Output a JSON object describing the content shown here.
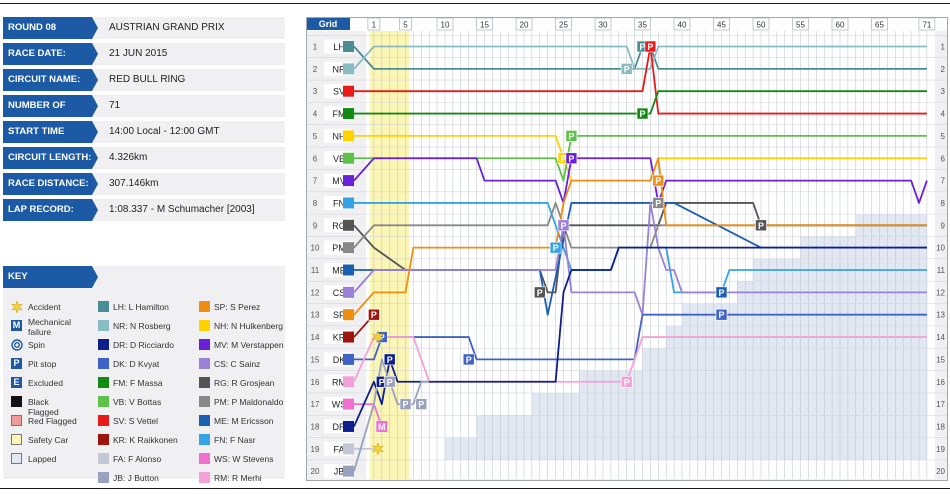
{
  "info": {
    "round": {
      "label": "ROUND 08",
      "value": "AUSTRIAN GRAND PRIX"
    },
    "rows": [
      {
        "label": "RACE DATE:",
        "value": "21 JUN 2015"
      },
      {
        "label": "CIRCUIT NAME:",
        "value": "RED BULL RING"
      },
      {
        "label": "NUMBER OF LAPS:",
        "value": "71"
      },
      {
        "label": "START TIME",
        "value": "14:00 Local - 12:00 GMT"
      },
      {
        "label": "CIRCUIT LENGTH:",
        "value": "4.326km"
      },
      {
        "label": "RACE DISTANCE:",
        "value": "307.146km"
      },
      {
        "label": "LAP RECORD:",
        "value": "1:08.337 - M Schumacher [2003]"
      }
    ]
  },
  "key": {
    "title": "KEY",
    "symbols": [
      {
        "name": "accident",
        "label": "Accident",
        "color": "#f2d13a"
      },
      {
        "name": "mechanical",
        "label": "Mechanical failure",
        "glyph": "M",
        "color": "#1d5aa5"
      },
      {
        "name": "spin",
        "label": "Spin",
        "color": "#1d5aa5"
      },
      {
        "name": "pitstop",
        "label": "Pit stop",
        "glyph": "P",
        "color": "#1d5aa5"
      },
      {
        "name": "excluded",
        "label": "Excluded",
        "glyph": "E",
        "color": "#1d5aa5"
      },
      {
        "name": "black",
        "label": "Black Flagged",
        "color": "#111111"
      },
      {
        "name": "red",
        "label": "Red Flagged",
        "color": "#f09a9a"
      },
      {
        "name": "safety",
        "label": "Safety Car",
        "color": "#fbf6b5"
      },
      {
        "name": "lapped",
        "label": "Lapped",
        "color": "#e2e8f2"
      }
    ],
    "drivers_col1": [
      {
        "label": "LH: L Hamilton",
        "color": "#4a8d95"
      },
      {
        "label": "NR: N Rosberg",
        "color": "#86bcc2"
      },
      {
        "label": "DR: D Ricciardo",
        "color": "#0c1f8c"
      },
      {
        "label": "DK: D Kvyat",
        "color": "#4062c8"
      },
      {
        "label": "FM: F Massa",
        "color": "#138a13"
      },
      {
        "label": "VB: V Bottas",
        "color": "#5ec24a"
      },
      {
        "label": "SV: S Vettel",
        "color": "#e81a1a"
      },
      {
        "label": "KR: K Raikkonen",
        "color": "#a0140f"
      },
      {
        "label": "FA: F Alonso",
        "color": "#c4c7d6"
      },
      {
        "label": "JB: J Button",
        "color": "#9aa0bf"
      }
    ],
    "drivers_col2": [
      {
        "label": "SP: S Perez",
        "color": "#ee8f14"
      },
      {
        "label": "NH: N Hulkenberg",
        "color": "#ffd200"
      },
      {
        "label": "MV: M Verstappen",
        "color": "#6a1fd8"
      },
      {
        "label": "CS: C Sainz",
        "color": "#9b80d8"
      },
      {
        "label": "RG: R Grosjean",
        "color": "#555555"
      },
      {
        "label": "PM: P Maldonaldo",
        "color": "#888888"
      },
      {
        "label": "ME: M Ericsson",
        "color": "#1a5fb4"
      },
      {
        "label": "FN: F Nasr",
        "color": "#36a3e6"
      },
      {
        "label": "WS: W Stevens",
        "color": "#f070d0"
      },
      {
        "label": "RM: R Merhi",
        "color": "#f5a0d8"
      }
    ]
  },
  "chart_data": {
    "type": "line",
    "title": "",
    "xlabel": "",
    "ylabel": "",
    "grid_header": "Grid",
    "x_ticks": [
      1,
      5,
      10,
      15,
      20,
      25,
      30,
      35,
      40,
      45,
      50,
      55,
      60,
      65,
      71
    ],
    "xlim": [
      0,
      71
    ],
    "ylim": [
      1,
      20
    ],
    "grid": true,
    "safety_car_laps": [
      1,
      5
    ],
    "lapped_area": [
      [
        7,
        20
      ],
      [
        10,
        20
      ],
      [
        10,
        19
      ],
      [
        14,
        19
      ],
      [
        14,
        18
      ],
      [
        21,
        18
      ],
      [
        21,
        17
      ],
      [
        27,
        17
      ],
      [
        27,
        16
      ],
      [
        35,
        16
      ],
      [
        35,
        15
      ],
      [
        38,
        15
      ],
      [
        38,
        14
      ],
      [
        40,
        14
      ],
      [
        40,
        13
      ],
      [
        47,
        13
      ],
      [
        47,
        12
      ],
      [
        49,
        12
      ],
      [
        49,
        11
      ],
      [
        55,
        11
      ],
      [
        55,
        10
      ],
      [
        62,
        10
      ],
      [
        62,
        9
      ],
      [
        71,
        9
      ],
      [
        71,
        20
      ]
    ],
    "series": [
      {
        "name": "LH",
        "color": "#4a8d95",
        "points": [
          [
            0,
            1
          ],
          [
            1,
            2
          ],
          [
            33,
            2
          ],
          [
            34,
            2
          ],
          [
            35,
            1
          ],
          [
            36,
            1
          ],
          [
            37,
            2
          ],
          [
            71,
            2
          ]
        ],
        "pits": [
          [
            35,
            1
          ]
        ]
      },
      {
        "name": "NR",
        "color": "#86bcc2",
        "points": [
          [
            0,
            2
          ],
          [
            1,
            1
          ],
          [
            33,
            1
          ],
          [
            34,
            2
          ],
          [
            35,
            2
          ],
          [
            36,
            2
          ],
          [
            37,
            1
          ],
          [
            71,
            1
          ]
        ],
        "pits": [
          [
            33,
            2
          ]
        ]
      },
      {
        "name": "SV",
        "color": "#e81a1a",
        "points": [
          [
            0,
            3
          ],
          [
            34,
            3
          ],
          [
            35,
            3
          ],
          [
            36,
            1
          ],
          [
            37,
            4
          ],
          [
            71,
            4
          ]
        ],
        "pits": [
          [
            36,
            1
          ]
        ]
      },
      {
        "name": "FM",
        "color": "#138a13",
        "points": [
          [
            0,
            4
          ],
          [
            34,
            4
          ],
          [
            35,
            4
          ],
          [
            36,
            4
          ],
          [
            37,
            3
          ],
          [
            71,
            3
          ]
        ],
        "pits": [
          [
            35,
            4
          ]
        ]
      },
      {
        "name": "NH",
        "color": "#ffd200",
        "points": [
          [
            0,
            5
          ],
          [
            24,
            5
          ],
          [
            25,
            6
          ],
          [
            26,
            7
          ],
          [
            35,
            7
          ],
          [
            36,
            7
          ],
          [
            37,
            6
          ],
          [
            71,
            6
          ]
        ],
        "pits": [
          [
            25,
            6
          ]
        ]
      },
      {
        "name": "VB",
        "color": "#5ec24a",
        "points": [
          [
            0,
            6
          ],
          [
            24,
            6
          ],
          [
            25,
            7
          ],
          [
            26,
            5
          ],
          [
            37,
            5
          ],
          [
            38,
            5
          ],
          [
            71,
            5
          ]
        ],
        "pits": [
          [
            26,
            5
          ]
        ]
      },
      {
        "name": "MV",
        "color": "#6a1fd8",
        "points": [
          [
            0,
            7
          ],
          [
            1,
            6
          ],
          [
            14,
            6
          ],
          [
            15,
            7
          ],
          [
            23,
            7
          ],
          [
            24,
            7
          ],
          [
            25,
            8
          ],
          [
            26,
            6
          ],
          [
            36,
            6
          ],
          [
            37,
            8
          ],
          [
            38,
            7
          ],
          [
            69,
            7
          ],
          [
            70,
            8
          ],
          [
            71,
            7
          ]
        ],
        "pits": [
          [
            26,
            6
          ]
        ]
      },
      {
        "name": "FN",
        "color": "#36a3e6",
        "points": [
          [
            0,
            8
          ],
          [
            23,
            8
          ],
          [
            24,
            9
          ],
          [
            25,
            10
          ],
          [
            26,
            11
          ],
          [
            31,
            11
          ],
          [
            32,
            10
          ],
          [
            37,
            10
          ],
          [
            38,
            10
          ],
          [
            39,
            12
          ],
          [
            45,
            12
          ],
          [
            46,
            11
          ],
          [
            71,
            11
          ]
        ],
        "pits": [
          [
            24,
            10
          ]
        ]
      },
      {
        "name": "RG",
        "color": "#555555",
        "points": [
          [
            0,
            9
          ],
          [
            1,
            10
          ],
          [
            5,
            11
          ],
          [
            22,
            11
          ],
          [
            23,
            12
          ],
          [
            24,
            12
          ],
          [
            25,
            9
          ],
          [
            37,
            9
          ],
          [
            38,
            8
          ],
          [
            49,
            8
          ],
          [
            50,
            9
          ],
          [
            71,
            9
          ]
        ],
        "pits": [
          [
            22,
            12
          ],
          [
            50,
            9
          ]
        ]
      },
      {
        "name": "PM",
        "color": "#888888",
        "points": [
          [
            0,
            10
          ],
          [
            1,
            9
          ],
          [
            23,
            9
          ],
          [
            24,
            8
          ],
          [
            25,
            9
          ],
          [
            26,
            10
          ],
          [
            36,
            10
          ],
          [
            37,
            9
          ],
          [
            38,
            9
          ],
          [
            71,
            9
          ]
        ],
        "pits": [
          [
            37,
            8
          ]
        ]
      },
      {
        "name": "ME",
        "color": "#1a5fb4",
        "points": [
          [
            0,
            11
          ],
          [
            5,
            11
          ],
          [
            22,
            11
          ],
          [
            23,
            13
          ],
          [
            26,
            8
          ],
          [
            39,
            8
          ],
          [
            50,
            10
          ],
          [
            71,
            10
          ]
        ],
        "pits": [
          [
            45,
            12
          ]
        ]
      },
      {
        "name": "CS",
        "color": "#9b80d8",
        "points": [
          [
            0,
            12
          ],
          [
            1,
            11
          ],
          [
            24,
            11
          ],
          [
            25,
            9
          ],
          [
            26,
            12
          ],
          [
            34,
            12
          ],
          [
            35,
            13
          ],
          [
            36,
            8
          ],
          [
            37,
            10
          ],
          [
            38,
            11
          ],
          [
            39,
            11
          ],
          [
            40,
            12
          ],
          [
            71,
            12
          ]
        ],
        "pits": [
          [
            25,
            9
          ]
        ]
      },
      {
        "name": "SP",
        "color": "#ee8f14",
        "points": [
          [
            0,
            13
          ],
          [
            1,
            12
          ],
          [
            5,
            12
          ],
          [
            6,
            10
          ],
          [
            24,
            10
          ],
          [
            25,
            8
          ],
          [
            26,
            7
          ],
          [
            36,
            7
          ],
          [
            37,
            6
          ],
          [
            38,
            9
          ],
          [
            71,
            9
          ]
        ],
        "pits": [
          [
            37,
            7
          ]
        ]
      },
      {
        "name": "KR",
        "color": "#a0140f",
        "points": [
          [
            0,
            14
          ],
          [
            1,
            13
          ]
        ],
        "pits": [
          [
            1,
            13
          ]
        ]
      },
      {
        "name": "DK",
        "color": "#4062c8",
        "points": [
          [
            0,
            15
          ],
          [
            1,
            15
          ],
          [
            2,
            14
          ],
          [
            13,
            14
          ],
          [
            14,
            15
          ],
          [
            34,
            15
          ],
          [
            35,
            13
          ],
          [
            38,
            13
          ],
          [
            45,
            13
          ],
          [
            71,
            13
          ]
        ],
        "pits": [
          [
            2,
            14
          ],
          [
            13,
            15
          ],
          [
            45,
            13
          ]
        ]
      },
      {
        "name": "RM",
        "color": "#f5a0d8",
        "points": [
          [
            0,
            16
          ],
          [
            1,
            14
          ],
          [
            6,
            14
          ],
          [
            7,
            15
          ],
          [
            8,
            16
          ],
          [
            33,
            16
          ],
          [
            34,
            15
          ],
          [
            35,
            14
          ],
          [
            71,
            14
          ]
        ],
        "pits": [
          [
            33,
            16
          ]
        ]
      },
      {
        "name": "WS",
        "color": "#f070d0",
        "points": [
          [
            0,
            17
          ],
          [
            1,
            17
          ],
          [
            2,
            18
          ]
        ],
        "pits": [
          [
            2,
            18
          ]
        ]
      },
      {
        "name": "DR",
        "color": "#0c1f8c",
        "points": [
          [
            0,
            18
          ],
          [
            1,
            16
          ],
          [
            2,
            17
          ],
          [
            3,
            15
          ],
          [
            4,
            16
          ],
          [
            24,
            16
          ],
          [
            25,
            12
          ],
          [
            26,
            11
          ],
          [
            31,
            11
          ],
          [
            32,
            10
          ],
          [
            71,
            10
          ]
        ],
        "pits": [
          [
            2,
            16
          ],
          [
            3,
            15
          ]
        ]
      },
      {
        "name": "FA",
        "color": "#c4c7d6",
        "points": [
          [
            0,
            19
          ],
          [
            1,
            19
          ]
        ],
        "pits": []
      },
      {
        "name": "JB",
        "color": "#9aa0bf",
        "points": [
          [
            0,
            20
          ],
          [
            1,
            17
          ],
          [
            2,
            15
          ],
          [
            3,
            16
          ],
          [
            4,
            17
          ],
          [
            5,
            17
          ],
          [
            6,
            17
          ],
          [
            7,
            16
          ],
          [
            8,
            16
          ]
        ],
        "pits": [
          [
            3,
            16
          ],
          [
            5,
            17
          ],
          [
            7,
            17
          ]
        ]
      }
    ],
    "incidents": [
      {
        "type": "accident",
        "driver": "KR",
        "lap": 1,
        "pos": 14
      },
      {
        "type": "accident",
        "driver": "FA",
        "lap": 1,
        "pos": 19
      },
      {
        "type": "mechanical",
        "driver": "WS",
        "lap": 2,
        "pos": 18
      }
    ]
  }
}
